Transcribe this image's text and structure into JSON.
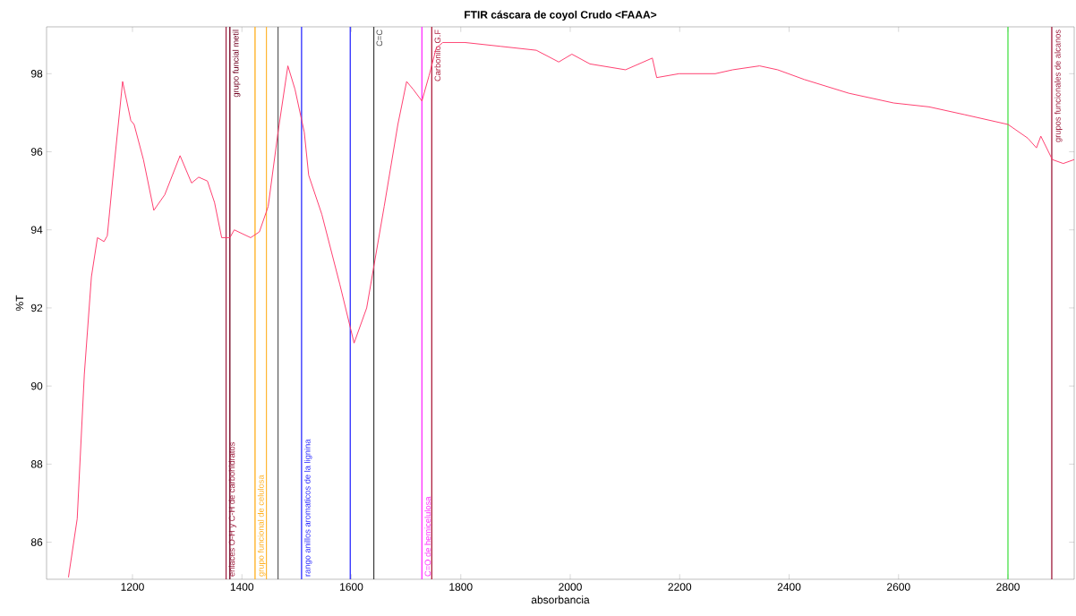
{
  "chart_data": {
    "type": "line",
    "title": "FTIR cáscara de coyol Crudo <FAAA>",
    "xlabel": "absorbancia",
    "ylabel": "%T",
    "xlim": [
      1043,
      2921
    ],
    "ylim": [
      85.05,
      99.2
    ],
    "xticks": [
      1200,
      1400,
      1600,
      1800,
      2000,
      2200,
      2400,
      2600,
      2800
    ],
    "yticks": [
      86,
      88,
      90,
      92,
      94,
      96,
      98
    ],
    "grid": false,
    "marker": "none",
    "line_style": "solid",
    "series": [
      {
        "color": "#ff3366",
        "x": [
          1083,
          1099,
          1112,
          1125,
          1136,
          1148,
          1154,
          1164,
          1182,
          1197,
          1203,
          1220,
          1239,
          1259,
          1287,
          1308,
          1321,
          1337,
          1350,
          1363,
          1378,
          1386,
          1416,
          1432,
          1448,
          1466,
          1484,
          1497,
          1514,
          1522,
          1546,
          1579,
          1605,
          1628,
          1660,
          1685,
          1701,
          1713,
          1729,
          1742,
          1755,
          1767,
          1807,
          1873,
          1938,
          1979,
          2003,
          2036,
          2101,
          2150,
          2158,
          2199,
          2265,
          2297,
          2346,
          2379,
          2428,
          2509,
          2591,
          2656,
          2721,
          2800,
          2836,
          2852,
          2860,
          2881,
          2901,
          2921
        ],
        "values": [
          85.1,
          86.6,
          90.3,
          92.8,
          93.8,
          93.7,
          93.85,
          95.3,
          97.8,
          96.8,
          96.7,
          95.8,
          94.5,
          94.9,
          95.9,
          95.2,
          95.35,
          95.25,
          94.7,
          93.8,
          93.8,
          94.0,
          93.8,
          93.95,
          94.6,
          96.5,
          98.2,
          97.6,
          96.5,
          95.4,
          94.4,
          92.6,
          91.1,
          92.0,
          94.6,
          96.7,
          97.8,
          97.6,
          97.3,
          97.95,
          98.65,
          98.8,
          98.8,
          98.7,
          98.6,
          98.3,
          98.5,
          98.25,
          98.1,
          98.4,
          97.9,
          98.0,
          98.0,
          98.1,
          98.2,
          98.1,
          97.85,
          97.5,
          97.25,
          97.15,
          96.95,
          96.7,
          96.35,
          96.1,
          96.4,
          95.8,
          95.7,
          95.8
        ]
      }
    ],
    "ref_lines": [
      {
        "axis": "x",
        "value": 1371,
        "color": "#a02040",
        "label": "enlaces O-H y C-H de carbohidratos"
      },
      {
        "axis": "x",
        "value": 1378,
        "color": "#700020",
        "label": "grupo funcial metil"
      },
      {
        "axis": "x",
        "value": 1424,
        "color": "#ffb020",
        "label": "grupo funcional de celulosa"
      },
      {
        "axis": "x",
        "value": 1445,
        "color": "#ffb020"
      },
      {
        "axis": "x",
        "value": 1466,
        "color": "#606060"
      },
      {
        "axis": "x",
        "value": 1509,
        "color": "#3030ff",
        "label": "rango anillos aromaticos de la lignina"
      },
      {
        "axis": "x",
        "value": 1598,
        "color": "#3030ff"
      },
      {
        "axis": "x",
        "value": 1641,
        "color": "#404040",
        "label": "C=C"
      },
      {
        "axis": "x",
        "value": 1729,
        "color": "#ff30ff",
        "label": "C=O de hemicelulosa"
      },
      {
        "axis": "x",
        "value": 1747,
        "color": "#b02040",
        "label": "Carbonilo G.F"
      },
      {
        "axis": "x",
        "value": 2800,
        "color": "#40e040"
      },
      {
        "axis": "x",
        "value": 2880,
        "color": "#a02040",
        "label": "grupos funcionales de alcanos"
      }
    ]
  }
}
